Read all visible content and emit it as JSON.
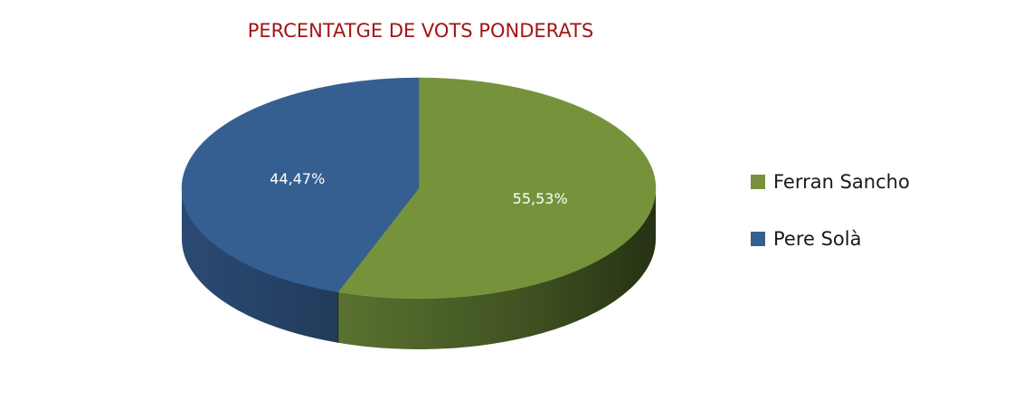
{
  "chart_data": {
    "type": "pie",
    "title": "PERCENTATGE DE VOTS PONDERATS",
    "series": [
      {
        "name": "Ferran Sancho",
        "value": 55.53,
        "label": "55,53%",
        "color": "#76933c"
      },
      {
        "name": "Pere Solà",
        "value": 44.47,
        "label": "44,47%",
        "color": "#365f91"
      }
    ],
    "legend_position": "right",
    "style": "3d"
  }
}
